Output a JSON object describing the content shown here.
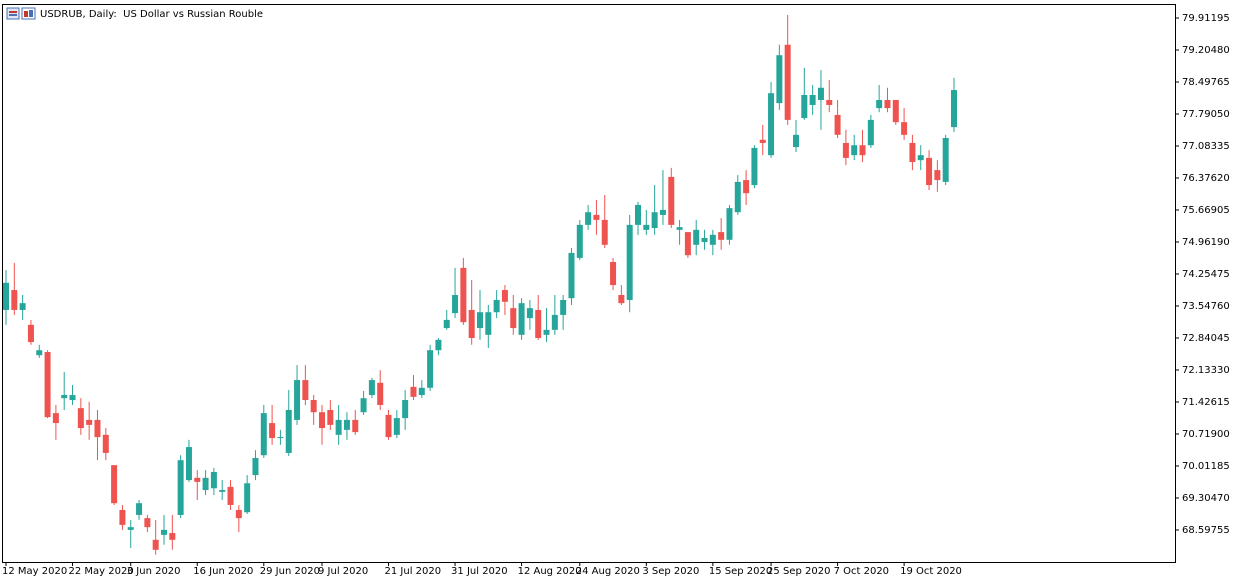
{
  "chart_data": {
    "type": "candlestick",
    "title": "USDRUB, Daily:  US Dollar vs Russian Rouble",
    "categories": [
      "12 May 2020",
      null,
      null,
      null,
      null,
      null,
      null,
      null,
      "22 May 2020",
      null,
      null,
      null,
      null,
      null,
      null,
      "3 Jun 2020",
      null,
      null,
      null,
      null,
      null,
      null,
      null,
      "16 Jun 2020",
      null,
      null,
      null,
      null,
      null,
      null,
      null,
      "29 Jun 2020",
      null,
      null,
      null,
      null,
      null,
      null,
      "9 Jul 2020",
      null,
      null,
      null,
      null,
      null,
      null,
      null,
      "21 Jul 2020",
      null,
      null,
      null,
      null,
      null,
      null,
      null,
      "31 Jul 2020",
      null,
      null,
      null,
      null,
      null,
      null,
      null,
      "12 Aug 2020",
      null,
      null,
      null,
      null,
      null,
      null,
      "24 Aug 2020",
      null,
      null,
      null,
      null,
      null,
      null,
      null,
      "3 Sep 2020",
      null,
      null,
      null,
      null,
      null,
      null,
      null,
      "15 Sep 2020",
      null,
      null,
      null,
      null,
      null,
      null,
      "25 Sep 2020",
      null,
      null,
      null,
      null,
      null,
      null,
      null,
      "7 Oct 2020",
      null,
      null,
      null,
      null,
      null,
      null,
      null,
      "19 Oct 2020",
      null,
      null,
      null,
      null,
      null,
      null
    ],
    "series": [
      {
        "name": "USDRUB",
        "up_color": "#26a69a",
        "down_color": "#ef5350",
        "open": [
          73.46,
          73.9,
          73.46,
          73.13,
          72.46,
          72.53,
          71.18,
          71.51,
          71.47,
          71.29,
          71.03,
          71.03,
          70.7,
          70.03,
          69.04,
          68.6,
          68.93,
          68.86,
          68.38,
          68.49,
          68.53,
          68.93,
          69.7,
          69.75,
          69.48,
          69.52,
          69.44,
          69.55,
          69.04,
          68.99,
          69.81,
          70.25,
          70.96,
          70.63,
          70.3,
          71.03,
          71.91,
          71.47,
          71.2,
          71.25,
          70.7,
          70.81,
          71.03,
          71.2,
          71.58,
          71.85,
          71.14,
          70.7,
          71.07,
          71.76,
          71.58,
          71.74,
          72.57,
          73.06,
          73.39,
          74.39,
          73.46,
          73.06,
          72.91,
          73.41,
          73.9,
          73.5,
          72.91,
          73.28,
          73.46,
          72.91,
          73.02,
          73.35,
          73.72,
          74.61,
          75.34,
          75.56,
          75.45,
          74.52,
          73.79,
          73.68,
          75.34,
          75.23,
          75.27,
          75.56,
          76.4,
          75.23,
          75.18,
          74.9,
          74.96,
          74.9,
          75.18,
          75.01,
          75.62,
          76.33,
          76.22,
          77.22,
          76.88,
          78.03,
          79.32,
          77.06,
          77.7,
          77.99,
          78.1,
          78.1,
          77.77,
          77.15,
          76.88,
          77.1,
          77.1,
          77.92,
          78.1,
          78.1,
          77.61,
          77.15,
          76.77,
          76.82,
          76.55,
          76.29,
          77.5
        ],
        "high": [
          74.34,
          74.5,
          73.79,
          73.24,
          72.69,
          72.57,
          71.36,
          72.09,
          71.8,
          71.51,
          71.43,
          71.25,
          70.85,
          70.03,
          69.15,
          68.82,
          69.26,
          68.93,
          68.82,
          68.93,
          68.93,
          70.25,
          70.59,
          69.92,
          69.92,
          69.97,
          69.7,
          69.7,
          69.15,
          69.81,
          70.36,
          71.36,
          71.36,
          70.81,
          71.69,
          72.24,
          72.24,
          71.58,
          71.36,
          71.47,
          71.36,
          71.2,
          71.25,
          71.67,
          71.96,
          72.13,
          71.25,
          71.25,
          71.69,
          72.02,
          71.91,
          72.69,
          72.84,
          73.46,
          74.39,
          74.61,
          74.12,
          73.9,
          73.57,
          73.9,
          74.01,
          73.79,
          73.72,
          73.68,
          73.79,
          73.5,
          73.79,
          73.79,
          74.83,
          75.45,
          75.78,
          75.89,
          76.0,
          74.61,
          74.01,
          75.56,
          75.85,
          75.67,
          76.22,
          76.55,
          76.6,
          75.45,
          75.18,
          75.45,
          75.23,
          75.23,
          75.49,
          75.78,
          76.44,
          76.55,
          77.1,
          77.55,
          78.5,
          79.32,
          79.98,
          77.66,
          78.81,
          78.43,
          78.76,
          78.54,
          78.1,
          77.44,
          77.33,
          77.44,
          77.77,
          78.43,
          78.37,
          78.1,
          77.92,
          77.33,
          77.1,
          76.99,
          76.77,
          77.33,
          78.59
        ],
        "low": [
          73.13,
          73.35,
          73.24,
          72.69,
          72.4,
          71.07,
          70.59,
          71.25,
          71.36,
          70.7,
          70.59,
          70.14,
          70.14,
          69.15,
          68.6,
          68.2,
          68.82,
          68.55,
          68.05,
          68.27,
          68.16,
          68.86,
          69.66,
          69.26,
          69.37,
          69.37,
          69.26,
          69.04,
          68.55,
          68.95,
          69.7,
          70.19,
          70.48,
          70.48,
          70.23,
          70.92,
          71.36,
          70.92,
          70.48,
          70.81,
          70.48,
          70.59,
          70.7,
          71.14,
          71.51,
          71.25,
          70.59,
          70.63,
          70.81,
          71.47,
          71.51,
          71.67,
          72.46,
          73.02,
          73.28,
          73.13,
          72.69,
          72.8,
          72.62,
          73.28,
          73.35,
          72.91,
          72.8,
          73.02,
          72.8,
          72.75,
          72.91,
          73.02,
          73.57,
          74.56,
          75.23,
          75.12,
          74.83,
          73.9,
          73.57,
          73.41,
          75.12,
          75.12,
          75.12,
          75.34,
          75.27,
          74.9,
          74.61,
          74.67,
          74.79,
          74.67,
          74.79,
          74.9,
          75.56,
          75.78,
          76.15,
          76.88,
          76.82,
          77.88,
          77.55,
          76.95,
          77.66,
          77.77,
          77.44,
          77.83,
          77.26,
          76.66,
          76.77,
          76.73,
          77.04,
          77.83,
          77.83,
          77.55,
          77.22,
          76.55,
          76.55,
          76.11,
          76.07,
          76.22,
          77.39
        ],
        "close": [
          74.06,
          73.46,
          73.61,
          72.75,
          72.57,
          71.09,
          70.96,
          71.58,
          71.58,
          70.85,
          70.92,
          70.65,
          70.3,
          69.19,
          68.71,
          68.66,
          69.19,
          68.66,
          68.16,
          68.6,
          68.38,
          70.14,
          70.43,
          69.66,
          69.75,
          69.88,
          69.48,
          69.15,
          68.86,
          69.63,
          70.19,
          71.18,
          70.63,
          70.65,
          71.25,
          71.91,
          71.47,
          71.2,
          70.85,
          70.92,
          71.03,
          71.03,
          70.76,
          71.51,
          71.91,
          71.36,
          70.65,
          71.07,
          71.47,
          71.54,
          71.74,
          72.57,
          72.8,
          73.24,
          73.79,
          73.19,
          72.84,
          73.41,
          73.41,
          73.68,
          73.64,
          73.06,
          73.61,
          73.5,
          72.84,
          73.02,
          73.35,
          73.68,
          74.72,
          75.34,
          75.62,
          75.45,
          74.9,
          74.01,
          73.61,
          75.34,
          75.78,
          75.34,
          75.62,
          75.67,
          75.34,
          75.29,
          74.67,
          75.23,
          75.05,
          75.12,
          75.01,
          75.71,
          76.29,
          76.04,
          77.04,
          77.15,
          78.25,
          79.09,
          77.66,
          77.33,
          78.21,
          78.21,
          78.37,
          77.99,
          77.33,
          76.82,
          77.1,
          76.88,
          77.66,
          78.1,
          77.92,
          77.61,
          77.33,
          76.73,
          76.88,
          76.22,
          76.33,
          77.26,
          78.32
        ]
      }
    ],
    "ylim": [
      67.89,
      80.221
    ],
    "yticks": [
      79.91195,
      {
        "value": 79.2048,
        "label": "79.20480"
      },
      78.49765,
      {
        "value": 77.7905,
        "label": "77.79050"
      },
      77.08335,
      {
        "value": 76.3762,
        "label": "76.37620"
      },
      75.66905,
      {
        "value": 74.9619,
        "label": "74.96190"
      },
      74.25475,
      {
        "value": 73.5476,
        "label": "73.54760"
      },
      72.84045,
      {
        "value": 72.1333,
        "label": "72.13330"
      },
      71.42615,
      {
        "value": 70.719,
        "label": "70.71900"
      },
      70.01185,
      {
        "value": 69.3047,
        "label": "69.30470"
      },
      68.59755
    ],
    "grid": false
  }
}
